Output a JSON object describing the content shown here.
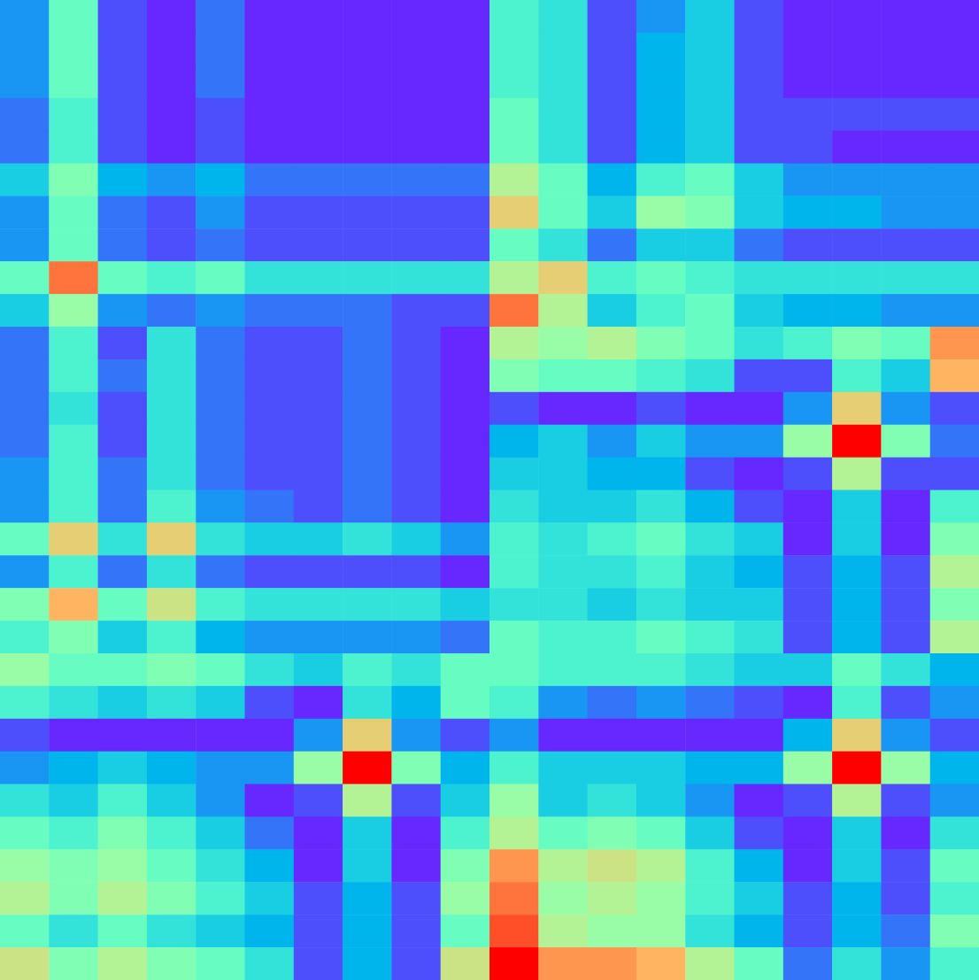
{
  "chart_data": [
    {
      "type": "heatmap",
      "tick_labels": false,
      "xlim": [
        0,
        10
      ],
      "ylim": [
        0,
        10
      ],
      "zlim": [
        0,
        1
      ],
      "cells": [
        [
          0.2,
          0.45,
          0.1,
          0.05,
          0.15,
          0.05,
          0.05,
          0.05,
          0.05,
          0.05
        ],
        [
          0.2,
          0.45,
          0.1,
          0.05,
          0.15,
          0.05,
          0.05,
          0.05,
          0.05,
          0.05
        ],
        [
          0.2,
          0.45,
          0.1,
          0.05,
          0.15,
          0.05,
          0.05,
          0.05,
          0.05,
          0.05
        ],
        [
          0.15,
          0.4,
          0.1,
          0.05,
          0.1,
          0.05,
          0.05,
          0.05,
          0.05,
          0.05
        ],
        [
          0.15,
          0.4,
          0.1,
          0.05,
          0.1,
          0.05,
          0.05,
          0.05,
          0.05,
          0.05
        ],
        [
          0.3,
          0.5,
          0.25,
          0.2,
          0.25,
          0.15,
          0.15,
          0.15,
          0.15,
          0.15
        ],
        [
          0.2,
          0.45,
          0.15,
          0.1,
          0.2,
          0.1,
          0.1,
          0.1,
          0.1,
          0.1
        ],
        [
          0.2,
          0.45,
          0.15,
          0.1,
          0.15,
          0.1,
          0.1,
          0.1,
          0.1,
          0.1
        ],
        [
          0.45,
          0.85,
          0.45,
          0.4,
          0.45,
          0.35,
          0.35,
          0.35,
          0.35,
          0.35
        ],
        [
          0.3,
          0.55,
          0.2,
          0.15,
          0.2,
          0.15,
          0.15,
          0.15,
          0.1,
          0.1
        ]
      ]
    },
    {
      "type": "heatmap",
      "tick_labels": false,
      "xlim": [
        0,
        10
      ],
      "ylim": [
        0,
        10
      ],
      "zlim": [
        0,
        1
      ],
      "cells": [
        [
          0.4,
          0.35,
          0.1,
          0.2,
          0.3,
          0.1,
          0.05,
          0.05,
          0.05,
          0.05
        ],
        [
          0.4,
          0.35,
          0.1,
          0.25,
          0.3,
          0.1,
          0.05,
          0.05,
          0.05,
          0.05
        ],
        [
          0.4,
          0.35,
          0.1,
          0.25,
          0.3,
          0.1,
          0.05,
          0.05,
          0.05,
          0.05
        ],
        [
          0.45,
          0.35,
          0.1,
          0.25,
          0.3,
          0.1,
          0.1,
          0.1,
          0.1,
          0.1
        ],
        [
          0.45,
          0.35,
          0.1,
          0.25,
          0.3,
          0.1,
          0.1,
          0.05,
          0.05,
          0.05
        ],
        [
          0.6,
          0.45,
          0.25,
          0.4,
          0.45,
          0.3,
          0.2,
          0.2,
          0.2,
          0.2
        ],
        [
          0.7,
          0.45,
          0.3,
          0.55,
          0.5,
          0.3,
          0.25,
          0.25,
          0.2,
          0.2
        ],
        [
          0.45,
          0.35,
          0.15,
          0.3,
          0.3,
          0.15,
          0.1,
          0.1,
          0.1,
          0.1
        ],
        [
          0.6,
          0.7,
          0.4,
          0.45,
          0.4,
          0.35,
          0.35,
          0.35,
          0.35,
          0.35
        ],
        [
          0.85,
          0.6,
          0.3,
          0.4,
          0.45,
          0.3,
          0.25,
          0.25,
          0.2,
          0.2
        ]
      ]
    },
    {
      "type": "heatmap",
      "tick_labels": false,
      "xlim": [
        0,
        10
      ],
      "ylim": [
        0,
        10
      ],
      "zlim": [
        0,
        1
      ],
      "cells": [
        [
          0.15,
          0.4,
          0.1,
          0.35,
          0.15,
          0.1,
          0.1,
          0.15,
          0.1,
          0.05
        ],
        [
          0.15,
          0.4,
          0.15,
          0.35,
          0.15,
          0.1,
          0.1,
          0.15,
          0.1,
          0.05
        ],
        [
          0.15,
          0.35,
          0.1,
          0.35,
          0.15,
          0.1,
          0.1,
          0.15,
          0.1,
          0.05
        ],
        [
          0.15,
          0.4,
          0.1,
          0.35,
          0.15,
          0.1,
          0.1,
          0.15,
          0.1,
          0.05
        ],
        [
          0.2,
          0.4,
          0.15,
          0.35,
          0.15,
          0.1,
          0.1,
          0.15,
          0.1,
          0.05
        ],
        [
          0.2,
          0.4,
          0.15,
          0.4,
          0.2,
          0.15,
          0.1,
          0.15,
          0.1,
          0.05
        ],
        [
          0.45,
          0.7,
          0.35,
          0.7,
          0.35,
          0.3,
          0.3,
          0.35,
          0.3,
          0.2
        ],
        [
          0.2,
          0.4,
          0.15,
          0.35,
          0.15,
          0.1,
          0.1,
          0.1,
          0.1,
          0.05
        ],
        [
          0.5,
          0.75,
          0.45,
          0.65,
          0.4,
          0.35,
          0.35,
          0.35,
          0.35,
          0.3
        ],
        [
          0.4,
          0.5,
          0.3,
          0.4,
          0.25,
          0.2,
          0.2,
          0.2,
          0.2,
          0.15
        ]
      ]
    },
    {
      "type": "heatmap",
      "tick_labels": false,
      "xlim": [
        0,
        10
      ],
      "ylim": [
        0,
        10
      ],
      "zlim": [
        0,
        1
      ],
      "cells": [
        [
          0.6,
          0.55,
          0.6,
          0.5,
          0.45,
          0.35,
          0.4,
          0.5,
          0.45,
          0.8
        ],
        [
          0.5,
          0.45,
          0.45,
          0.4,
          0.35,
          0.1,
          0.1,
          0.4,
          0.3,
          0.75
        ],
        [
          0.1,
          0.05,
          0.05,
          0.1,
          0.05,
          0.05,
          0.2,
          0.7,
          0.2,
          0.1
        ],
        [
          0.25,
          0.3,
          0.2,
          0.3,
          0.2,
          0.2,
          0.55,
          1.0,
          0.5,
          0.15
        ],
        [
          0.3,
          0.3,
          0.25,
          0.25,
          0.1,
          0.05,
          0.1,
          0.6,
          0.1,
          0.1
        ],
        [
          0.35,
          0.3,
          0.3,
          0.35,
          0.25,
          0.1,
          0.05,
          0.3,
          0.05,
          0.4
        ],
        [
          0.4,
          0.35,
          0.4,
          0.45,
          0.35,
          0.3,
          0.05,
          0.3,
          0.05,
          0.5
        ],
        [
          0.4,
          0.35,
          0.35,
          0.4,
          0.3,
          0.25,
          0.1,
          0.25,
          0.1,
          0.6
        ],
        [
          0.35,
          0.35,
          0.3,
          0.35,
          0.3,
          0.3,
          0.1,
          0.25,
          0.1,
          0.5
        ],
        [
          0.45,
          0.4,
          0.4,
          0.45,
          0.4,
          0.35,
          0.1,
          0.25,
          0.1,
          0.6
        ]
      ]
    },
    {
      "type": "heatmap",
      "tick_labels": false,
      "xlim": [
        0,
        10
      ],
      "ylim": [
        0,
        10
      ],
      "zlim": [
        0,
        1
      ],
      "cells": [
        [
          0.55,
          0.45,
          0.45,
          0.5,
          0.45,
          0.35,
          0.3,
          0.4,
          0.35,
          0.45
        ],
        [
          0.4,
          0.35,
          0.3,
          0.35,
          0.3,
          0.1,
          0.05,
          0.35,
          0.25,
          0.45
        ],
        [
          0.1,
          0.05,
          0.05,
          0.05,
          0.05,
          0.05,
          0.2,
          0.7,
          0.2,
          0.1
        ],
        [
          0.2,
          0.25,
          0.3,
          0.25,
          0.2,
          0.2,
          0.55,
          1.0,
          0.5,
          0.25
        ],
        [
          0.35,
          0.3,
          0.4,
          0.3,
          0.2,
          0.05,
          0.1,
          0.6,
          0.1,
          0.3
        ],
        [
          0.45,
          0.4,
          0.5,
          0.4,
          0.3,
          0.15,
          0.05,
          0.3,
          0.05,
          0.4
        ],
        [
          0.55,
          0.5,
          0.55,
          0.45,
          0.35,
          0.25,
          0.05,
          0.3,
          0.05,
          0.5
        ],
        [
          0.6,
          0.5,
          0.6,
          0.5,
          0.4,
          0.3,
          0.1,
          0.25,
          0.1,
          0.55
        ],
        [
          0.45,
          0.35,
          0.45,
          0.35,
          0.3,
          0.25,
          0.1,
          0.25,
          0.1,
          0.45
        ],
        [
          0.65,
          0.5,
          0.6,
          0.5,
          0.45,
          0.35,
          0.1,
          0.25,
          0.1,
          0.65
        ]
      ]
    },
    {
      "type": "heatmap",
      "tick_labels": false,
      "xlim": [
        0,
        10
      ],
      "ylim": [
        0,
        10
      ],
      "zlim": [
        0,
        1
      ],
      "cells": [
        [
          0.45,
          0.4,
          0.4,
          0.4,
          0.35,
          0.3,
          0.3,
          0.45,
          0.35,
          0.25
        ],
        [
          0.4,
          0.2,
          0.15,
          0.2,
          0.15,
          0.1,
          0.05,
          0.4,
          0.1,
          0.2
        ],
        [
          0.2,
          0.05,
          0.05,
          0.05,
          0.05,
          0.05,
          0.25,
          0.7,
          0.2,
          0.1
        ],
        [
          0.4,
          0.3,
          0.3,
          0.3,
          0.25,
          0.25,
          0.55,
          1.0,
          0.55,
          0.25
        ],
        [
          0.55,
          0.3,
          0.35,
          0.3,
          0.2,
          0.05,
          0.1,
          0.6,
          0.1,
          0.2
        ],
        [
          0.6,
          0.45,
          0.5,
          0.45,
          0.3,
          0.1,
          0.05,
          0.3,
          0.05,
          0.35
        ],
        [
          0.8,
          0.6,
          0.65,
          0.6,
          0.4,
          0.25,
          0.05,
          0.3,
          0.1,
          0.45
        ],
        [
          0.85,
          0.55,
          0.6,
          0.55,
          0.4,
          0.3,
          0.1,
          0.25,
          0.1,
          0.4
        ],
        [
          0.9,
          0.6,
          0.55,
          0.55,
          0.35,
          0.25,
          0.1,
          0.25,
          0.15,
          0.5
        ],
        [
          1.0,
          0.8,
          0.8,
          0.75,
          0.6,
          0.45,
          0.15,
          0.35,
          0.2,
          0.4
        ]
      ]
    }
  ]
}
